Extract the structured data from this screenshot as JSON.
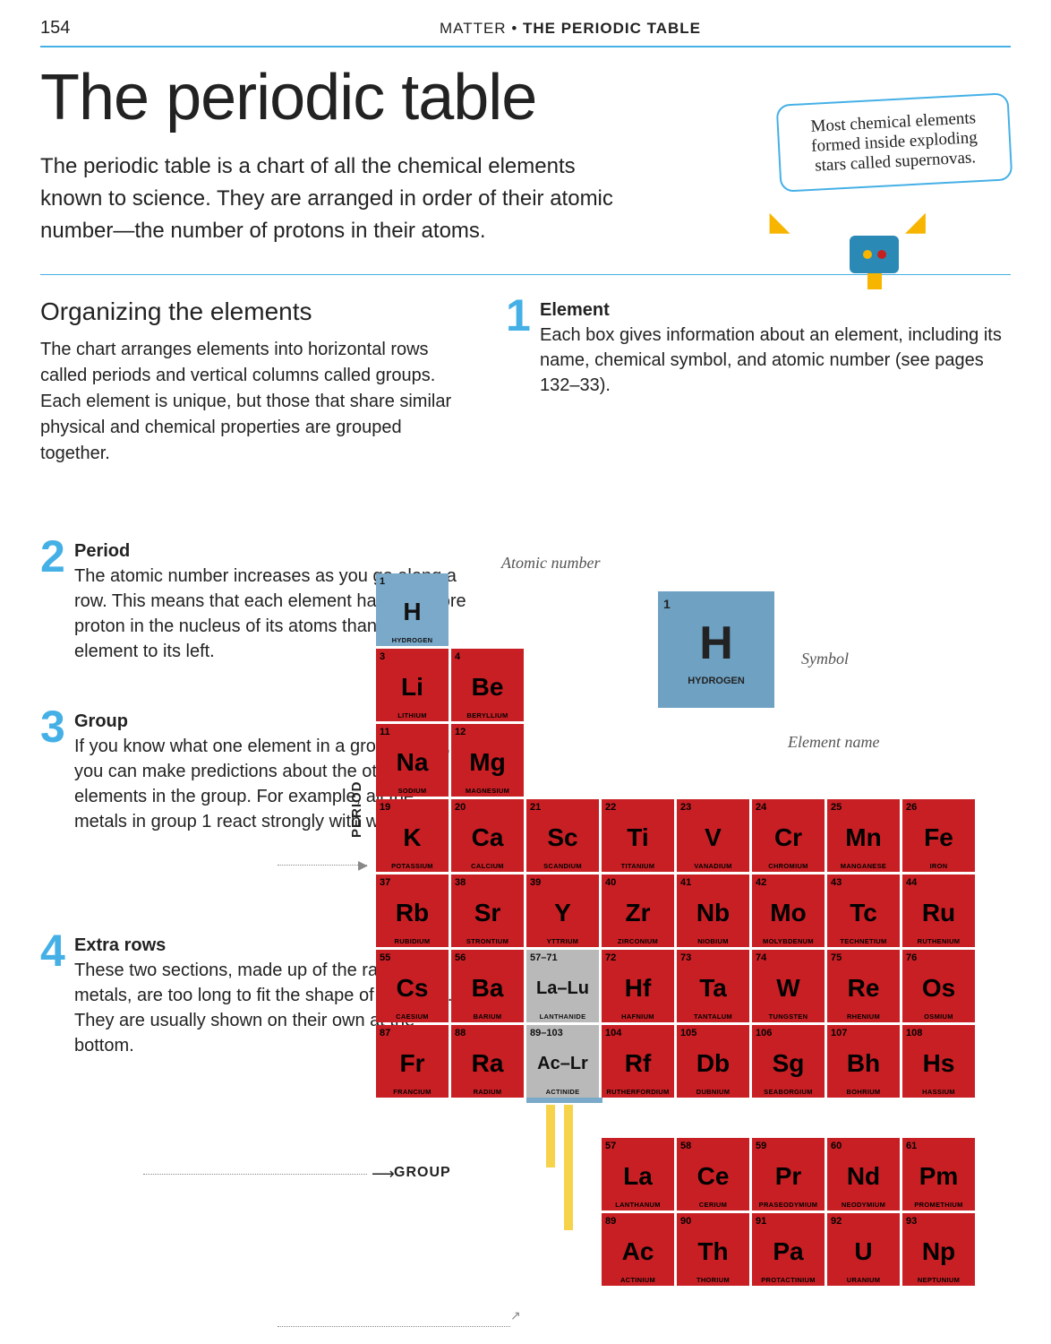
{
  "page_number": "154",
  "header_section": "MATTER",
  "header_topic": "THE PERIODIC TABLE",
  "title": "The periodic table",
  "intro": "The periodic table is a chart of all the chemical elements known to science. They are arranged in order of their atomic number—the number of protons in their atoms.",
  "callout": "Most chemical elements formed inside exploding stars called supernovas.",
  "organizing_title": "Organizing the elements",
  "organizing_text": "The chart arranges elements into horizontal rows called periods and vertical columns called groups. Each element is unique, but those that share similar physical and chemical properties are grouped together.",
  "step1_num": "1",
  "step1_title": "Element",
  "step1_text": "Each box gives information about an element, including its name, chemical symbol, and atomic number (see pages 132–33).",
  "step2_num": "2",
  "step2_title": "Period",
  "step2_text": "The atomic number increases as you go along a row. This means that each element has one more proton in the nucleus of its atoms than the element to its left.",
  "step3_num": "3",
  "step3_title": "Group",
  "step3_text": "If you know what one element in a group is like, you can make predictions about the other elements in the group. For example, all the metals in group 1 react strongly with water.",
  "step4_num": "4",
  "step4_title": "Extra rows",
  "step4_text": "These two sections, made up of the rare earth metals, are too long to fit the shape of the table. They are usually shown on their own at the bottom.",
  "annot_atomic": "Atomic number",
  "annot_symbol": "Symbol",
  "annot_name": "Element name",
  "axis_period": "PERIOD",
  "axis_group": "GROUP",
  "big_h": {
    "num": "1",
    "sym": "H",
    "name": "HYDROGEN"
  },
  "colors": {
    "hydrogen": "#7aa9c9",
    "metal": "#c81f24",
    "accent": "#45b0e6",
    "number": "#45b0e6"
  },
  "elements": [
    {
      "row": 1,
      "col": 1,
      "num": "1",
      "sym": "H",
      "name": "HYDROGEN",
      "cls": "h"
    },
    {
      "row": 2,
      "col": 1,
      "num": "3",
      "sym": "Li",
      "name": "LITHIUM",
      "cls": "red"
    },
    {
      "row": 2,
      "col": 2,
      "num": "4",
      "sym": "Be",
      "name": "BERYLLIUM",
      "cls": "red"
    },
    {
      "row": 3,
      "col": 1,
      "num": "11",
      "sym": "Na",
      "name": "SODIUM",
      "cls": "red"
    },
    {
      "row": 3,
      "col": 2,
      "num": "12",
      "sym": "Mg",
      "name": "MAGNESIUM",
      "cls": "red"
    },
    {
      "row": 4,
      "col": 1,
      "num": "19",
      "sym": "K",
      "name": "POTASSIUM",
      "cls": "red"
    },
    {
      "row": 4,
      "col": 2,
      "num": "20",
      "sym": "Ca",
      "name": "CALCIUM",
      "cls": "red"
    },
    {
      "row": 4,
      "col": 3,
      "num": "21",
      "sym": "Sc",
      "name": "SCANDIUM",
      "cls": "red"
    },
    {
      "row": 4,
      "col": 4,
      "num": "22",
      "sym": "Ti",
      "name": "TITANIUM",
      "cls": "red"
    },
    {
      "row": 4,
      "col": 5,
      "num": "23",
      "sym": "V",
      "name": "VANADIUM",
      "cls": "red"
    },
    {
      "row": 4,
      "col": 6,
      "num": "24",
      "sym": "Cr",
      "name": "CHROMIUM",
      "cls": "red"
    },
    {
      "row": 4,
      "col": 7,
      "num": "25",
      "sym": "Mn",
      "name": "MANGANESE",
      "cls": "red"
    },
    {
      "row": 4,
      "col": 8,
      "num": "26",
      "sym": "Fe",
      "name": "IRON",
      "cls": "red"
    },
    {
      "row": 5,
      "col": 1,
      "num": "37",
      "sym": "Rb",
      "name": "RUBIDIUM",
      "cls": "red"
    },
    {
      "row": 5,
      "col": 2,
      "num": "38",
      "sym": "Sr",
      "name": "STRONTIUM",
      "cls": "red"
    },
    {
      "row": 5,
      "col": 3,
      "num": "39",
      "sym": "Y",
      "name": "YTTRIUM",
      "cls": "red"
    },
    {
      "row": 5,
      "col": 4,
      "num": "40",
      "sym": "Zr",
      "name": "ZIRCONIUM",
      "cls": "red"
    },
    {
      "row": 5,
      "col": 5,
      "num": "41",
      "sym": "Nb",
      "name": "NIOBIUM",
      "cls": "red"
    },
    {
      "row": 5,
      "col": 6,
      "num": "42",
      "sym": "Mo",
      "name": "MOLYBDENUM",
      "cls": "red"
    },
    {
      "row": 5,
      "col": 7,
      "num": "43",
      "sym": "Tc",
      "name": "TECHNETIUM",
      "cls": "red"
    },
    {
      "row": 5,
      "col": 8,
      "num": "44",
      "sym": "Ru",
      "name": "RUTHENIUM",
      "cls": "red"
    },
    {
      "row": 6,
      "col": 1,
      "num": "55",
      "sym": "Cs",
      "name": "CAESIUM",
      "cls": "red"
    },
    {
      "row": 6,
      "col": 2,
      "num": "56",
      "sym": "Ba",
      "name": "BARIUM",
      "cls": "red"
    },
    {
      "row": 6,
      "col": 3,
      "num": "57–71",
      "sym": "La–Lu",
      "name": "LANTHANIDE",
      "cls": "grey"
    },
    {
      "row": 6,
      "col": 4,
      "num": "72",
      "sym": "Hf",
      "name": "HAFNIUM",
      "cls": "red"
    },
    {
      "row": 6,
      "col": 5,
      "num": "73",
      "sym": "Ta",
      "name": "TANTALUM",
      "cls": "red"
    },
    {
      "row": 6,
      "col": 6,
      "num": "74",
      "sym": "W",
      "name": "TUNGSTEN",
      "cls": "red"
    },
    {
      "row": 6,
      "col": 7,
      "num": "75",
      "sym": "Re",
      "name": "RHENIUM",
      "cls": "red"
    },
    {
      "row": 6,
      "col": 8,
      "num": "76",
      "sym": "Os",
      "name": "OSMIUM",
      "cls": "red"
    },
    {
      "row": 7,
      "col": 1,
      "num": "87",
      "sym": "Fr",
      "name": "FRANCIUM",
      "cls": "red"
    },
    {
      "row": 7,
      "col": 2,
      "num": "88",
      "sym": "Ra",
      "name": "RADIUM",
      "cls": "red"
    },
    {
      "row": 7,
      "col": 3,
      "num": "89–103",
      "sym": "Ac–Lr",
      "name": "ACTINIDE",
      "cls": "grey"
    },
    {
      "row": 7,
      "col": 4,
      "num": "104",
      "sym": "Rf",
      "name": "RUTHERFORDIUM",
      "cls": "red"
    },
    {
      "row": 7,
      "col": 5,
      "num": "105",
      "sym": "Db",
      "name": "DUBNIUM",
      "cls": "red"
    },
    {
      "row": 7,
      "col": 6,
      "num": "106",
      "sym": "Sg",
      "name": "SEABORGIUM",
      "cls": "red"
    },
    {
      "row": 7,
      "col": 7,
      "num": "107",
      "sym": "Bh",
      "name": "BOHRIUM",
      "cls": "red"
    },
    {
      "row": 7,
      "col": 8,
      "num": "108",
      "sym": "Hs",
      "name": "HASSIUM",
      "cls": "red"
    },
    {
      "row": 8.5,
      "col": 4,
      "num": "57",
      "sym": "La",
      "name": "LANTHANUM",
      "cls": "red"
    },
    {
      "row": 8.5,
      "col": 5,
      "num": "58",
      "sym": "Ce",
      "name": "CERIUM",
      "cls": "red"
    },
    {
      "row": 8.5,
      "col": 6,
      "num": "59",
      "sym": "Pr",
      "name": "PRASEODYMIUM",
      "cls": "red"
    },
    {
      "row": 8.5,
      "col": 7,
      "num": "60",
      "sym": "Nd",
      "name": "NEODYMIUM",
      "cls": "red"
    },
    {
      "row": 8.5,
      "col": 8,
      "num": "61",
      "sym": "Pm",
      "name": "PROMETHIUM",
      "cls": "red"
    },
    {
      "row": 9.5,
      "col": 4,
      "num": "89",
      "sym": "Ac",
      "name": "ACTINIUM",
      "cls": "red"
    },
    {
      "row": 9.5,
      "col": 5,
      "num": "90",
      "sym": "Th",
      "name": "THORIUM",
      "cls": "red"
    },
    {
      "row": 9.5,
      "col": 6,
      "num": "91",
      "sym": "Pa",
      "name": "PROTACTINIUM",
      "cls": "red"
    },
    {
      "row": 9.5,
      "col": 7,
      "num": "92",
      "sym": "U",
      "name": "URANIUM",
      "cls": "red"
    },
    {
      "row": 9.5,
      "col": 8,
      "num": "93",
      "sym": "Np",
      "name": "NEPTUNIUM",
      "cls": "red"
    }
  ]
}
